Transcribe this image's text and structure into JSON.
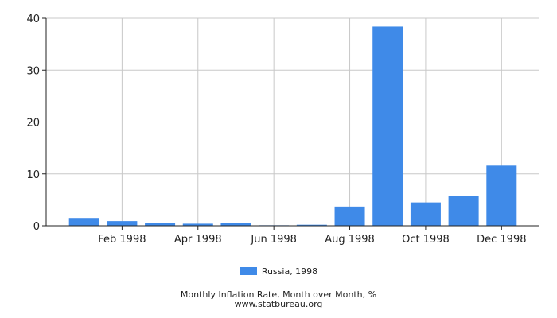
{
  "chart_data": {
    "type": "bar",
    "categories": [
      "Jan 1998",
      "Feb 1998",
      "Mar 1998",
      "Apr 1998",
      "May 1998",
      "Jun 1998",
      "Jul 1998",
      "Aug 1998",
      "Sep 1998",
      "Oct 1998",
      "Nov 1998",
      "Dec 1998"
    ],
    "x_tick_labels": [
      "Feb 1998",
      "Apr 1998",
      "Jun 1998",
      "Aug 1998",
      "Oct 1998",
      "Dec 1998"
    ],
    "series": [
      {
        "name": "Russia, 1998",
        "values": [
          1.5,
          0.9,
          0.6,
          0.4,
          0.5,
          0.1,
          0.2,
          3.7,
          38.4,
          4.5,
          5.7,
          11.6
        ]
      }
    ],
    "y_ticks": [
      0,
      10,
      20,
      30,
      40
    ],
    "ylim": [
      0,
      40
    ],
    "grid": true,
    "legend_position": "bottom",
    "bar_color": "#3f8ae8",
    "title": "Monthly Inflation Rate, Month over Month, %",
    "source": "www.statbureau.org"
  }
}
